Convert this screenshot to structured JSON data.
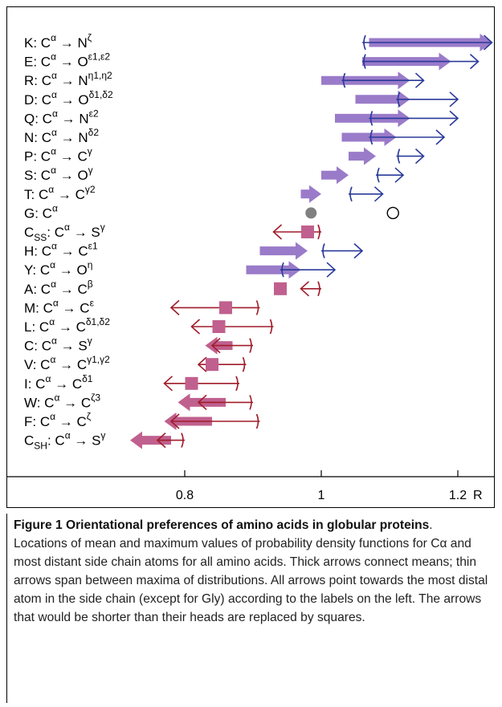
{
  "figure": {
    "caption_title": "Figure 1 Orientational preferences of amino acids in globular proteins",
    "caption_text": ". Locations of mean and maximum values of probability density functions for Cα and most distant side chain atoms for all amino acids. Thick arrows connect means; thin arrows span between maxima of distributions. All arrows point towards the most distal atom in the side chain (except for Gly) according to the labels on the left. The arrows that would be shorter than their heads are replaced by squares."
  },
  "colors": {
    "purple": "#9a7bc9",
    "blue": "#2a3a9a",
    "pink": "#c0608e",
    "red": "#a01c2a",
    "gray": "#808080"
  },
  "chart_data": {
    "type": "range-arrow",
    "xlabel": "R",
    "xlim": [
      0.65,
      1.3
    ],
    "xticks": [
      {
        "value": 0.8,
        "label": "0.8"
      },
      {
        "value": 1.0,
        "label": "1"
      },
      {
        "value": 1.2,
        "label": "1.2"
      }
    ],
    "rows": [
      {
        "label": {
          "pre": "K: C",
          "s1": "α",
          "arrow": " → N",
          "s2": "ζ",
          "sub": ""
        },
        "mean_from": 1.07,
        "mean_to": 1.25,
        "max_from": 1.06,
        "max_to": 1.25,
        "style": "blue-right"
      },
      {
        "label": {
          "pre": "E: C",
          "s1": "α",
          "arrow": " → O",
          "s2": "ε1,ε2",
          "sub": ""
        },
        "mean_from": 1.06,
        "mean_to": 1.19,
        "max_from": 1.06,
        "max_to": 1.23,
        "style": "blue-right"
      },
      {
        "label": {
          "pre": "R: C",
          "s1": "α",
          "arrow": " → N",
          "s2": "η1,η2",
          "sub": ""
        },
        "mean_from": 1.0,
        "mean_to": 1.13,
        "max_from": 1.03,
        "max_to": 1.15,
        "style": "blue-right"
      },
      {
        "label": {
          "pre": "D: C",
          "s1": "α",
          "arrow": " → O",
          "s2": "δ1,δ2",
          "sub": ""
        },
        "mean_from": 1.05,
        "mean_to": 1.13,
        "max_from": 1.11,
        "max_to": 1.2,
        "style": "blue-right"
      },
      {
        "label": {
          "pre": "Q: C",
          "s1": "α",
          "arrow": " → N",
          "s2": "ε2",
          "sub": ""
        },
        "mean_from": 1.02,
        "mean_to": 1.13,
        "max_from": 1.07,
        "max_to": 1.2,
        "style": "blue-right"
      },
      {
        "label": {
          "pre": "N: C",
          "s1": "α",
          "arrow": " → N",
          "s2": "δ2",
          "sub": ""
        },
        "mean_from": 1.03,
        "mean_to": 1.11,
        "max_from": 1.07,
        "max_to": 1.18,
        "style": "blue-right"
      },
      {
        "label": {
          "pre": "P: C",
          "s1": "α",
          "arrow": " → C",
          "s2": "γ",
          "sub": ""
        },
        "mean_from": 1.04,
        "mean_to": 1.08,
        "max_from": 1.11,
        "max_to": 1.15,
        "style": "blue-right"
      },
      {
        "label": {
          "pre": "S: C",
          "s1": "α",
          "arrow": " → O",
          "s2": "γ",
          "sub": ""
        },
        "mean_from": 1.0,
        "mean_to": 1.04,
        "max_from": 1.08,
        "max_to": 1.12,
        "style": "blue-right"
      },
      {
        "label": {
          "pre": "T: C",
          "s1": "α",
          "arrow": " → C",
          "s2": "γ2",
          "sub": ""
        },
        "mean_from": 0.97,
        "mean_to": 1.0,
        "max_from": 1.04,
        "max_to": 1.09,
        "style": "blue-right"
      },
      {
        "label": {
          "pre": "G: C",
          "s1": "α",
          "arrow": "",
          "s2": "",
          "sub": ""
        },
        "mean_from": 0.985,
        "mean_to": 0.985,
        "max_from": 1.105,
        "max_to": 1.105,
        "style": "circles"
      },
      {
        "label": {
          "pre": "C",
          "s1": "α",
          "arrow": " → S",
          "s2": "γ",
          "sub": "SS"
        },
        "mean_from": 0.98,
        "mean_to": 0.98,
        "max_from": 1.0,
        "max_to": 0.93,
        "style": "square-red-left"
      },
      {
        "label": {
          "pre": "H: C",
          "s1": "α",
          "arrow": " → C",
          "s2": "ε1",
          "sub": ""
        },
        "mean_from": 0.91,
        "mean_to": 0.98,
        "max_from": 1.0,
        "max_to": 1.06,
        "style": "blue-right"
      },
      {
        "label": {
          "pre": "Y: C",
          "s1": "α",
          "arrow": " → O",
          "s2": "η",
          "sub": ""
        },
        "mean_from": 0.89,
        "mean_to": 0.97,
        "max_from": 0.94,
        "max_to": 1.02,
        "style": "blue-right"
      },
      {
        "label": {
          "pre": "A: C",
          "s1": "α",
          "arrow": " → C",
          "s2": "β",
          "sub": ""
        },
        "mean_from": 0.94,
        "mean_to": 0.94,
        "max_from": 1.0,
        "max_to": 0.97,
        "style": "square-red-left"
      },
      {
        "label": {
          "pre": "M: C",
          "s1": "α",
          "arrow": " → C",
          "s2": "ε",
          "sub": ""
        },
        "mean_from": 0.86,
        "mean_to": 0.86,
        "max_from": 0.91,
        "max_to": 0.78,
        "style": "square-red-left"
      },
      {
        "label": {
          "pre": "L: C",
          "s1": "α",
          "arrow": " → C",
          "s2": "δ1,δ2",
          "sub": ""
        },
        "mean_from": 0.85,
        "mean_to": 0.85,
        "max_from": 0.93,
        "max_to": 0.81,
        "style": "square-red-left"
      },
      {
        "label": {
          "pre": "C: C",
          "s1": "α",
          "arrow": " → S",
          "s2": "γ",
          "sub": ""
        },
        "mean_from": 0.87,
        "mean_to": 0.83,
        "max_from": 0.9,
        "max_to": 0.84,
        "style": "pink-left"
      },
      {
        "label": {
          "pre": "V: C",
          "s1": "α",
          "arrow": " → C",
          "s2": "γ1,γ2",
          "sub": ""
        },
        "mean_from": 0.84,
        "mean_to": 0.84,
        "max_from": 0.89,
        "max_to": 0.82,
        "style": "square-red-left"
      },
      {
        "label": {
          "pre": "I: C",
          "s1": "α",
          "arrow": " → C",
          "s2": "δ1",
          "sub": ""
        },
        "mean_from": 0.81,
        "mean_to": 0.81,
        "max_from": 0.88,
        "max_to": 0.77,
        "style": "square-red-left"
      },
      {
        "label": {
          "pre": "W: C",
          "s1": "α",
          "arrow": " → C",
          "s2": "ζ3",
          "sub": ""
        },
        "mean_from": 0.86,
        "mean_to": 0.79,
        "max_from": 0.9,
        "max_to": 0.82,
        "style": "pink-left"
      },
      {
        "label": {
          "pre": "F: C",
          "s1": "α",
          "arrow": " → C",
          "s2": "ζ",
          "sub": ""
        },
        "mean_from": 0.84,
        "mean_to": 0.77,
        "max_from": 0.91,
        "max_to": 0.78,
        "style": "pink-left"
      },
      {
        "label": {
          "pre": "C",
          "s1": "α",
          "arrow": " → S",
          "s2": "γ",
          "sub": "SH"
        },
        "mean_from": 0.78,
        "mean_to": 0.72,
        "max_from": 0.8,
        "max_to": 0.76,
        "style": "pink-left"
      }
    ]
  }
}
